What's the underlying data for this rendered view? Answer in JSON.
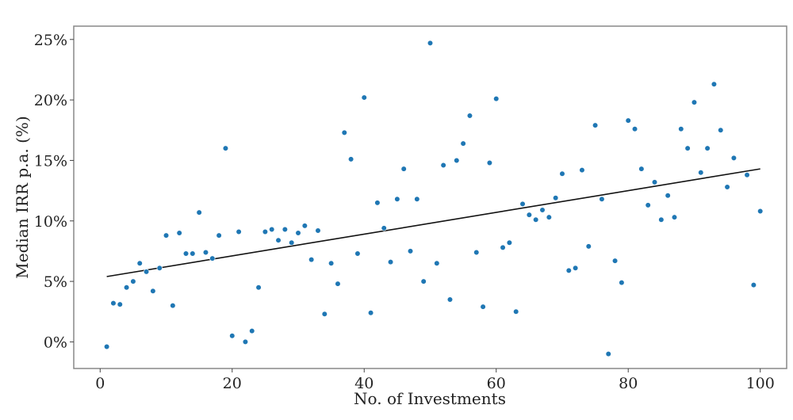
{
  "chart_data": {
    "type": "scatter",
    "title": "",
    "xlabel": "No. of Investments",
    "ylabel": "Median IRR p.a. (%)",
    "xlim": [
      -4,
      104
    ],
    "ylim": [
      -2.2,
      26.1
    ],
    "x_ticks": [
      0,
      20,
      40,
      60,
      80,
      100
    ],
    "x_tick_labels": [
      "0",
      "20",
      "40",
      "60",
      "80",
      "100"
    ],
    "y_ticks": [
      0,
      5,
      10,
      15,
      20,
      25
    ],
    "y_tick_labels": [
      "0%",
      "5%",
      "10%",
      "15%",
      "20%",
      "25%"
    ],
    "grid": false,
    "colors": {
      "points": "#1f77b4",
      "trend": "#111111"
    },
    "points": [
      [
        1,
        -0.4
      ],
      [
        2,
        3.2
      ],
      [
        3,
        3.1
      ],
      [
        4,
        4.5
      ],
      [
        5,
        5.0
      ],
      [
        6,
        6.5
      ],
      [
        7,
        5.8
      ],
      [
        8,
        4.2
      ],
      [
        9,
        6.1
      ],
      [
        10,
        8.8
      ],
      [
        11,
        3.0
      ],
      [
        12,
        9.0
      ],
      [
        13,
        7.3
      ],
      [
        14,
        7.3
      ],
      [
        15,
        10.7
      ],
      [
        16,
        7.4
      ],
      [
        17,
        6.9
      ],
      [
        18,
        8.8
      ],
      [
        19,
        16.0
      ],
      [
        20,
        0.5
      ],
      [
        21,
        9.1
      ],
      [
        22,
        0.0
      ],
      [
        23,
        0.9
      ],
      [
        24,
        4.5
      ],
      [
        25,
        9.1
      ],
      [
        26,
        9.3
      ],
      [
        27,
        8.4
      ],
      [
        28,
        9.3
      ],
      [
        29,
        8.2
      ],
      [
        30,
        9.0
      ],
      [
        31,
        9.6
      ],
      [
        32,
        6.8
      ],
      [
        33,
        9.2
      ],
      [
        34,
        2.3
      ],
      [
        35,
        6.5
      ],
      [
        36,
        4.8
      ],
      [
        37,
        17.3
      ],
      [
        38,
        15.1
      ],
      [
        39,
        7.3
      ],
      [
        40,
        20.2
      ],
      [
        41,
        2.4
      ],
      [
        42,
        11.5
      ],
      [
        43,
        9.4
      ],
      [
        44,
        6.6
      ],
      [
        45,
        11.8
      ],
      [
        46,
        14.3
      ],
      [
        47,
        7.5
      ],
      [
        48,
        11.8
      ],
      [
        49,
        5.0
      ],
      [
        50,
        24.7
      ],
      [
        51,
        6.5
      ],
      [
        52,
        14.6
      ],
      [
        53,
        3.5
      ],
      [
        54,
        15.0
      ],
      [
        55,
        16.4
      ],
      [
        56,
        18.7
      ],
      [
        57,
        7.4
      ],
      [
        58,
        2.9
      ],
      [
        59,
        14.8
      ],
      [
        60,
        20.1
      ],
      [
        61,
        7.8
      ],
      [
        62,
        8.2
      ],
      [
        63,
        2.5
      ],
      [
        64,
        11.4
      ],
      [
        65,
        10.5
      ],
      [
        66,
        10.1
      ],
      [
        67,
        10.9
      ],
      [
        68,
        10.3
      ],
      [
        69,
        11.9
      ],
      [
        70,
        13.9
      ],
      [
        71,
        5.9
      ],
      [
        72,
        6.1
      ],
      [
        73,
        14.2
      ],
      [
        74,
        7.9
      ],
      [
        75,
        17.9
      ],
      [
        76,
        11.8
      ],
      [
        77,
        -1.0
      ],
      [
        78,
        6.7
      ],
      [
        79,
        4.9
      ],
      [
        80,
        18.3
      ],
      [
        81,
        17.6
      ],
      [
        82,
        14.3
      ],
      [
        83,
        11.3
      ],
      [
        84,
        13.2
      ],
      [
        85,
        10.1
      ],
      [
        86,
        12.1
      ],
      [
        87,
        10.3
      ],
      [
        88,
        17.6
      ],
      [
        89,
        16.0
      ],
      [
        90,
        19.8
      ],
      [
        91,
        14.0
      ],
      [
        92,
        16.0
      ],
      [
        93,
        21.3
      ],
      [
        94,
        17.5
      ],
      [
        95,
        12.8
      ],
      [
        96,
        15.2
      ],
      [
        98,
        13.8
      ],
      [
        99,
        4.7
      ],
      [
        100,
        10.8
      ]
    ],
    "trend_line": {
      "x": [
        1,
        100
      ],
      "y": [
        5.4,
        14.3
      ]
    }
  }
}
